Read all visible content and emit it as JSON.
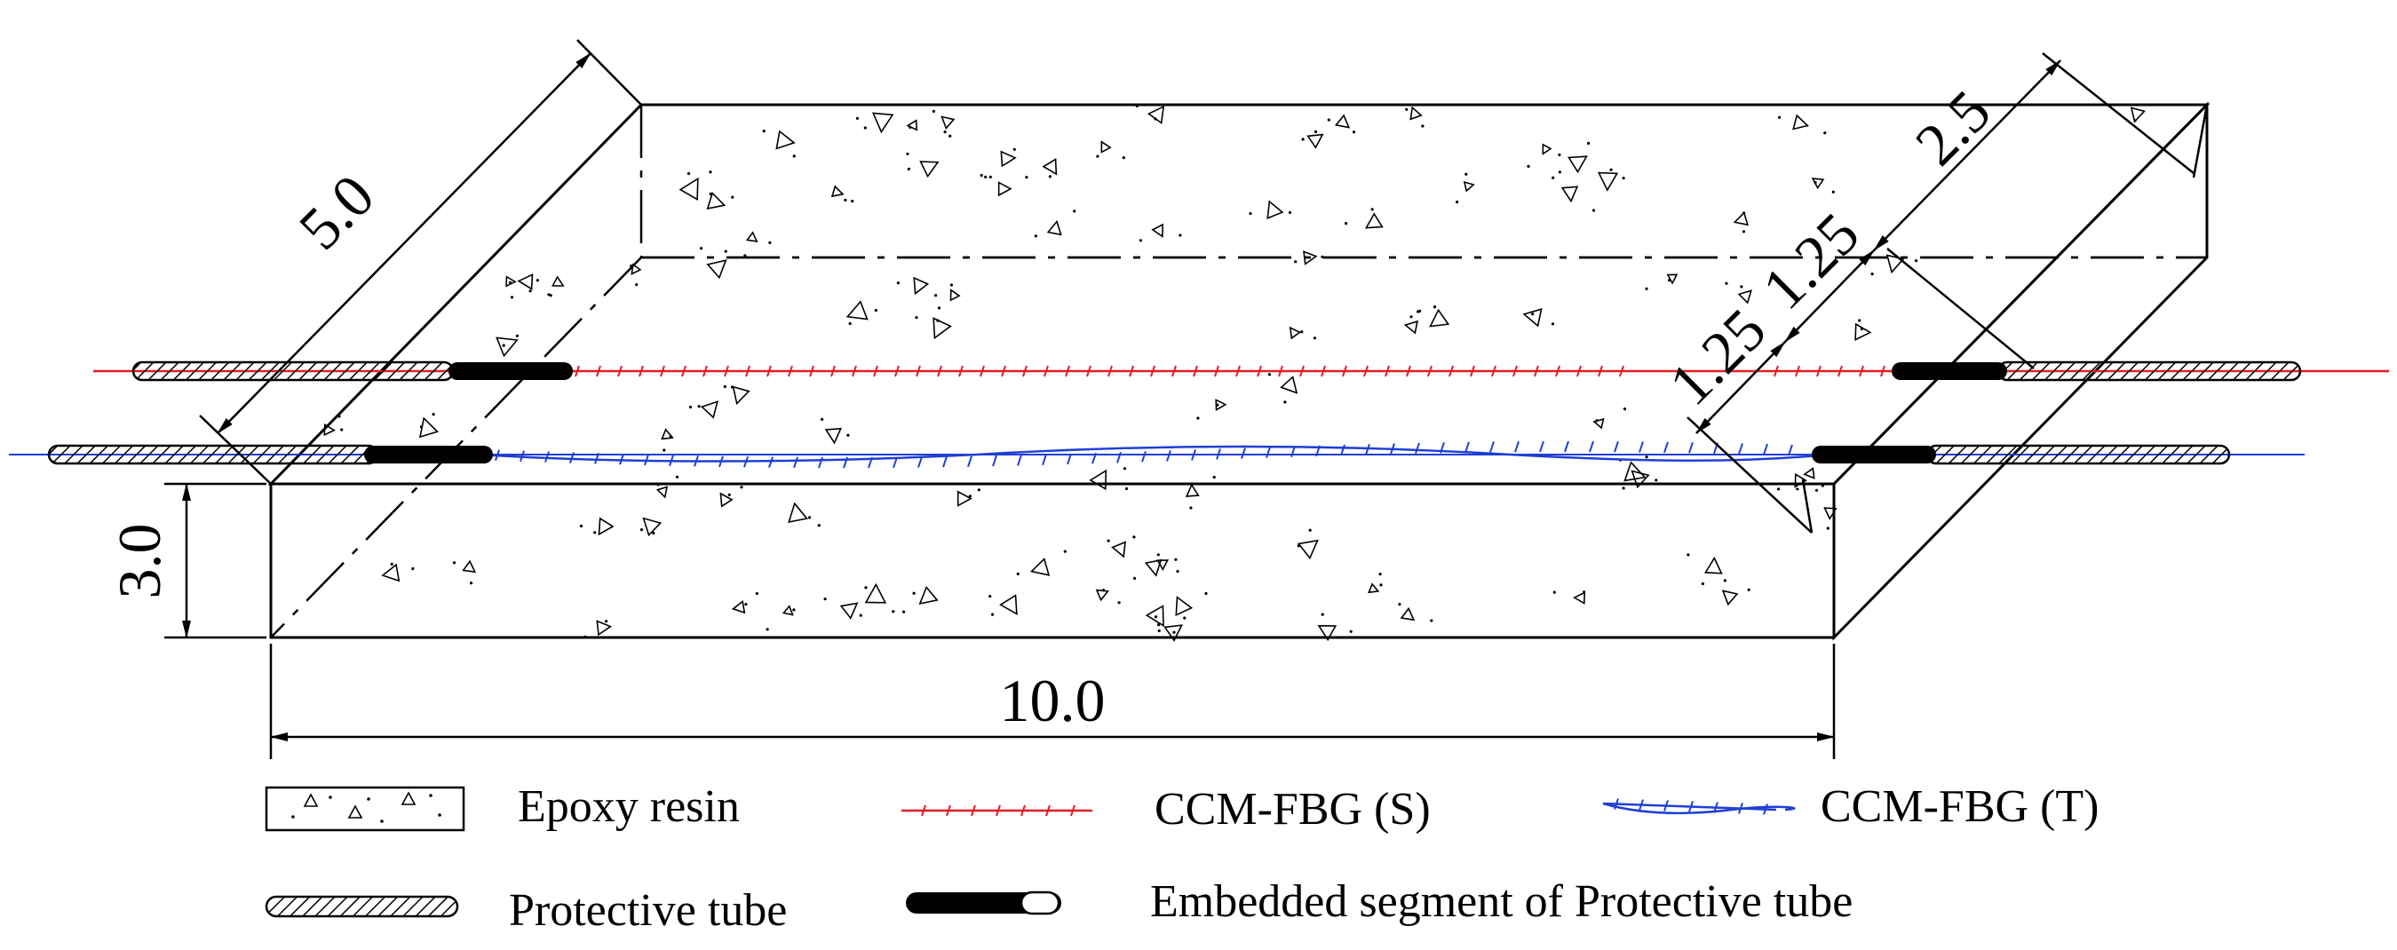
{
  "diagram": {
    "dimensions": {
      "length": "10.0",
      "height": "3.0",
      "width": "5.0",
      "half_width": "2.5",
      "quarter_1": "1.25",
      "quarter_2": "1.25"
    },
    "legend": {
      "epoxy": "Epoxy resin",
      "ccm_s": "CCM-FBG (S)",
      "ccm_t": "CCM-FBG (T)",
      "tube": "Protective tube",
      "embedded": "Embedded segment of Protective tube"
    },
    "colors": {
      "fbg_s": "#e31e24",
      "fbg_t": "#1f3fd6",
      "line": "#000000",
      "hatch_fill": "#ffffff"
    }
  }
}
